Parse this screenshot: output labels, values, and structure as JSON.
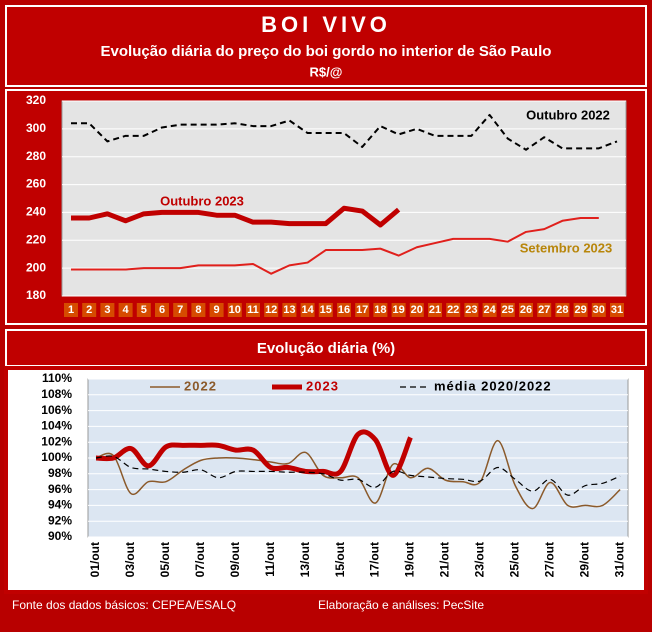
{
  "header": {
    "title": "BOI VIVO",
    "subtitle": "Evolução diária do preço do boi gordo no interior de São Paulo",
    "unit": "R$/@"
  },
  "chart_data": [
    {
      "type": "line",
      "categories": [
        "1",
        "2",
        "3",
        "4",
        "5",
        "6",
        "7",
        "8",
        "9",
        "10",
        "11",
        "12",
        "13",
        "14",
        "15",
        "16",
        "17",
        "18",
        "19",
        "20",
        "21",
        "22",
        "23",
        "24",
        "25",
        "26",
        "27",
        "28",
        "29",
        "30",
        "31"
      ],
      "series": [
        {
          "name": "Outubro 2022",
          "color": "#000000",
          "linestyle": "dashed",
          "linewidth": 2,
          "values": [
            304,
            304,
            291,
            295,
            295,
            301,
            303,
            303,
            303,
            304,
            302,
            302,
            306,
            297,
            297,
            297,
            287,
            302,
            296,
            300,
            295,
            295,
            295,
            310,
            293,
            285,
            294,
            286,
            286,
            286,
            291
          ]
        },
        {
          "name": "Outubro 2023",
          "color": "#c00000",
          "linestyle": "solid",
          "linewidth": 5,
          "values": [
            236,
            236,
            239,
            234,
            239,
            240,
            240,
            240,
            238,
            238,
            233,
            233,
            232,
            232,
            232,
            243,
            241,
            231,
            242,
            null,
            null,
            null,
            null,
            null,
            null,
            null,
            null,
            null,
            null,
            null,
            null
          ]
        },
        {
          "name": "Setembro 2023",
          "color": "#e0201c",
          "label_color": "#b8860b",
          "linestyle": "solid",
          "linewidth": 2,
          "values": [
            199,
            199,
            199,
            199,
            200,
            200,
            200,
            202,
            202,
            202,
            203,
            196,
            202,
            204,
            213,
            213,
            213,
            214,
            209,
            215,
            218,
            221,
            221,
            221,
            219,
            226,
            228,
            234,
            236,
            236,
            null
          ]
        }
      ],
      "ylim": [
        180,
        320
      ],
      "yticks": [
        180,
        200,
        220,
        240,
        260,
        280,
        300,
        320
      ],
      "grid": true,
      "smooth": false
    },
    {
      "type": "line",
      "title": "Evolução diária (%)",
      "categories": [
        "01/out",
        null,
        "03/out",
        null,
        "05/out",
        null,
        "07/out",
        null,
        "09/out",
        null,
        "11/out",
        null,
        "13/out",
        null,
        "15/out",
        null,
        "17/out",
        null,
        "19/out",
        null,
        "21/out",
        null,
        "23/out",
        null,
        "25/out",
        null,
        "27/out",
        null,
        "29/out",
        null,
        "31/out"
      ],
      "series": [
        {
          "name": "2022",
          "color": "#8b5a2b",
          "linestyle": "solid",
          "linewidth": 1.5,
          "values": [
            100,
            100.3,
            95.5,
            97,
            97,
            98.5,
            99.7,
            100,
            100,
            99.8,
            99.5,
            99.3,
            100.7,
            97.8,
            97.5,
            97.5,
            94.3,
            99.2,
            97.5,
            98.7,
            97.2,
            97,
            97,
            102.2,
            96.5,
            93.6,
            96.9,
            94,
            94,
            94,
            96
          ]
        },
        {
          "name": "2023",
          "color": "#c00000",
          "linestyle": "solid",
          "linewidth": 5,
          "values": [
            100,
            100,
            101.2,
            99,
            101.4,
            101.6,
            101.6,
            101.6,
            101,
            101,
            98.8,
            98.8,
            98.3,
            98.3,
            98.3,
            103,
            102.3,
            97.8,
            102.6,
            null,
            null,
            null,
            null,
            null,
            null,
            null,
            null,
            null,
            null,
            null,
            null
          ]
        },
        {
          "name": "média 2020/2022",
          "color": "#000000",
          "linestyle": "dashed",
          "linewidth": 1.2,
          "values": [
            100,
            100.2,
            98.8,
            98.6,
            98.3,
            98.2,
            98.5,
            97.5,
            98.3,
            98.3,
            98.3,
            98.2,
            98.2,
            98,
            97.2,
            97.3,
            96.3,
            98.3,
            97.8,
            97.6,
            97.4,
            97.3,
            97.1,
            98.8,
            97.3,
            95.8,
            97.3,
            95.3,
            96.5,
            96.8,
            97.7
          ]
        }
      ],
      "ylim": [
        90,
        110
      ],
      "yticks": [
        {
          "value": 90,
          "label": "90%"
        },
        {
          "value": 92,
          "label": "92%"
        },
        {
          "value": 94,
          "label": "94%"
        },
        {
          "value": 96,
          "label": "96%"
        },
        {
          "value": 98,
          "label": "98%"
        },
        {
          "value": 100,
          "label": "100%"
        },
        {
          "value": 102,
          "label": "102%"
        },
        {
          "value": 104,
          "label": "104%"
        },
        {
          "value": 106,
          "label": "106%"
        },
        {
          "value": 108,
          "label": "108%"
        },
        {
          "value": 110,
          "label": "110%"
        }
      ],
      "grid": true,
      "smooth": true,
      "legend": "top"
    }
  ],
  "footer": {
    "source": "Fonte dos dados básicos: CEPEA/ESALQ",
    "credit": "Elaboração e análises: PecSite"
  }
}
